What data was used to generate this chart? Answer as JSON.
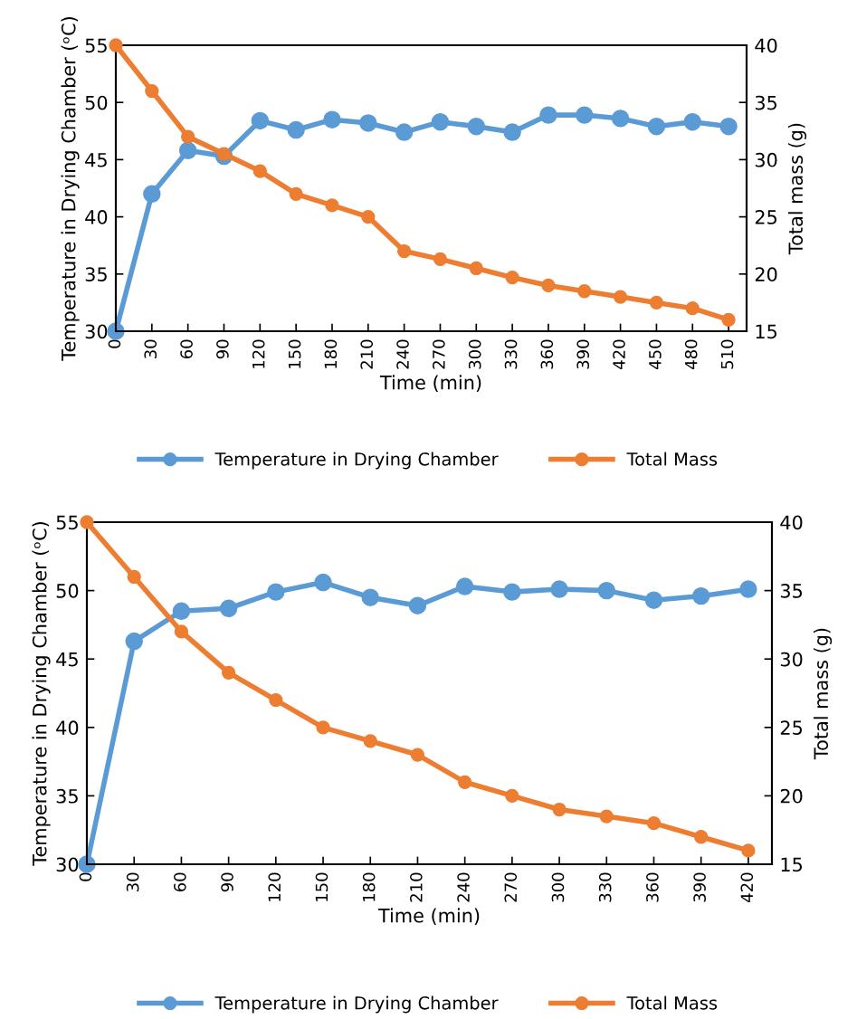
{
  "chart_data": [
    {
      "type": "line",
      "xlabel": "Time (min)",
      "ylabel": "Temperature in Drying Chamber (ᵒC)",
      "y2label": "Total mass (g)",
      "categories": [
        "0",
        "30",
        "60",
        "90",
        "120",
        "150",
        "180",
        "210",
        "240",
        "270",
        "300",
        "330",
        "360",
        "390",
        "420",
        "450",
        "480",
        "510"
      ],
      "ylim": [
        30,
        55
      ],
      "yticks": [
        30,
        35,
        40,
        45,
        50,
        55
      ],
      "y2lim": [
        15,
        40
      ],
      "y2ticks": [
        15,
        20,
        25,
        30,
        35,
        40
      ],
      "marker": "circle",
      "line_style": "solid",
      "grid": false,
      "legend": "bottom",
      "series": [
        {
          "name": "Temperature in Drying Chamber",
          "color": "#5b9bd5",
          "values": [
            30,
            42,
            45.8,
            45.3,
            48.4,
            47.6,
            48.5,
            48.2,
            47.4,
            48.3,
            47.9,
            47.4,
            48.9,
            48.9,
            48.6,
            47.9,
            48.3,
            47.9
          ]
        },
        {
          "name": "Total Mass",
          "color": "#ed7d31",
          "axis": "y2",
          "values": [
            40,
            36,
            32,
            30.5,
            29,
            27,
            26,
            25,
            22,
            21.3,
            20.5,
            19.7,
            19,
            18.5,
            18,
            17.5,
            17,
            16
          ]
        }
      ]
    },
    {
      "type": "line",
      "xlabel": "Time (min)",
      "ylabel": "Temperature in Drying Chamber (ᵒC)",
      "y2label": "Total mass (g)",
      "categories": [
        "0",
        "30",
        "60",
        "90",
        "120",
        "150",
        "180",
        "210",
        "240",
        "270",
        "300",
        "330",
        "360",
        "390",
        "420"
      ],
      "ylim": [
        30,
        55
      ],
      "yticks": [
        30,
        35,
        40,
        45,
        50,
        55
      ],
      "y2lim": [
        15,
        40
      ],
      "y2ticks": [
        15,
        20,
        25,
        30,
        35,
        40
      ],
      "marker": "circle",
      "line_style": "solid",
      "grid": false,
      "legend": "bottom",
      "series": [
        {
          "name": "Temperature in Drying Chamber",
          "color": "#5b9bd5",
          "values": [
            30,
            46.3,
            48.5,
            48.7,
            49.9,
            50.6,
            49.5,
            48.9,
            50.3,
            49.9,
            50.1,
            50.0,
            49.3,
            49.6,
            50.1
          ]
        },
        {
          "name": "Total Mass",
          "color": "#ed7d31",
          "axis": "y2",
          "values": [
            40,
            36,
            32,
            29,
            27,
            25,
            24,
            23,
            21,
            20,
            19,
            18.5,
            18,
            17,
            16
          ]
        }
      ]
    }
  ]
}
